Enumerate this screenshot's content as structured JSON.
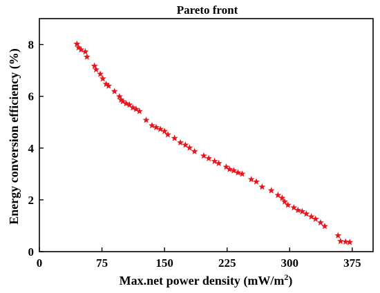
{
  "chart_data": {
    "type": "scatter",
    "title": "Pareto front",
    "xlabel": "Max.net power density (mW/m",
    "xlabel_sup": "2",
    "xlabel_close": ")",
    "ylabel": "Energy conversion efficiency (%)",
    "xlim": [
      0,
      400
    ],
    "ylim": [
      0,
      9
    ],
    "xticks": [
      0,
      75,
      150,
      225,
      300,
      375
    ],
    "xtick_labels": [
      "0",
      "75",
      "150",
      "225",
      "300",
      "375"
    ],
    "yticks": [
      0,
      2,
      4,
      6,
      8
    ],
    "ytick_labels": [
      "0",
      "2",
      "4",
      "6",
      "8"
    ],
    "grid": false,
    "marker": "star",
    "marker_color": "#e8141b",
    "series": [
      {
        "points": [
          [
            45,
            8.02
          ],
          [
            47,
            7.88
          ],
          [
            50,
            7.8
          ],
          [
            55,
            7.72
          ],
          [
            57,
            7.52
          ],
          [
            66,
            7.17
          ],
          [
            68,
            7.03
          ],
          [
            73,
            6.86
          ],
          [
            76,
            6.68
          ],
          [
            80,
            6.47
          ],
          [
            83,
            6.4
          ],
          [
            90,
            6.19
          ],
          [
            96,
            5.99
          ],
          [
            98,
            5.86
          ],
          [
            100,
            5.8
          ],
          [
            104,
            5.72
          ],
          [
            108,
            5.67
          ],
          [
            112,
            5.56
          ],
          [
            116,
            5.5
          ],
          [
            120,
            5.42
          ],
          [
            128,
            5.08
          ],
          [
            135,
            4.87
          ],
          [
            140,
            4.8
          ],
          [
            145,
            4.73
          ],
          [
            150,
            4.65
          ],
          [
            154,
            4.52
          ],
          [
            162,
            4.38
          ],
          [
            169,
            4.21
          ],
          [
            175,
            4.12
          ],
          [
            180,
            4.01
          ],
          [
            186,
            3.87
          ],
          [
            197,
            3.7
          ],
          [
            203,
            3.6
          ],
          [
            210,
            3.49
          ],
          [
            215,
            3.41
          ],
          [
            224,
            3.27
          ],
          [
            228,
            3.18
          ],
          [
            233,
            3.13
          ],
          [
            238,
            3.05
          ],
          [
            243,
            3.0
          ],
          [
            254,
            2.79
          ],
          [
            260,
            2.7
          ],
          [
            267,
            2.5
          ],
          [
            278,
            2.36
          ],
          [
            286,
            2.18
          ],
          [
            291,
            2.07
          ],
          [
            294,
            1.93
          ],
          [
            298,
            1.8
          ],
          [
            305,
            1.7
          ],
          [
            310,
            1.6
          ],
          [
            315,
            1.55
          ],
          [
            320,
            1.46
          ],
          [
            326,
            1.35
          ],
          [
            331,
            1.26
          ],
          [
            337,
            1.12
          ],
          [
            342,
            0.98
          ],
          [
            358,
            0.62
          ],
          [
            361,
            0.4
          ],
          [
            367,
            0.38
          ],
          [
            372,
            0.36
          ]
        ]
      }
    ]
  }
}
